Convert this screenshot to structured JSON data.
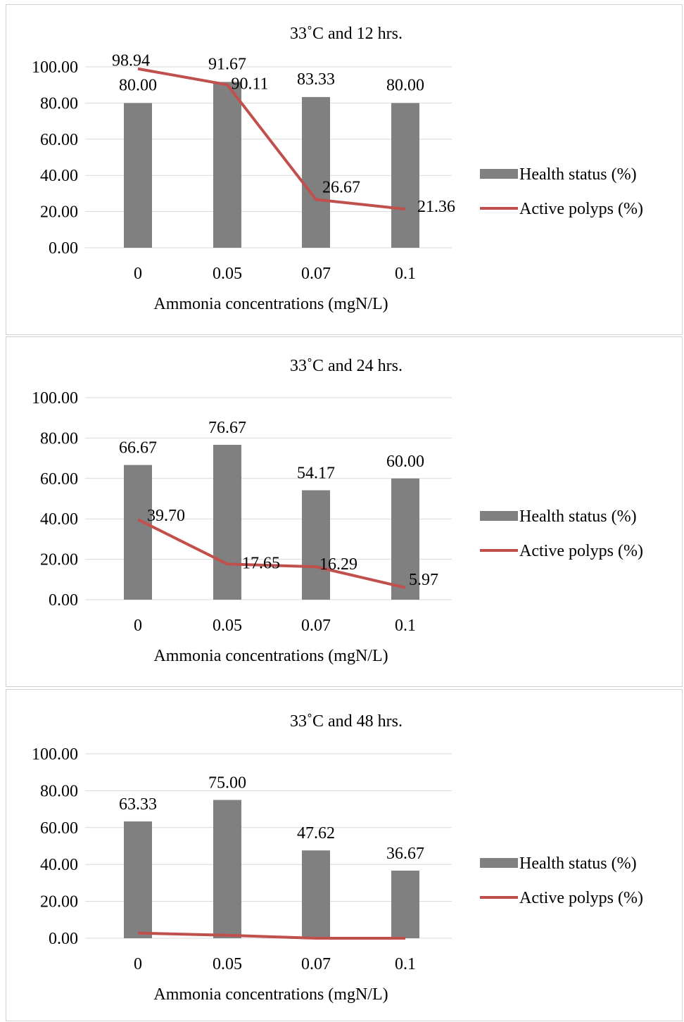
{
  "chart_data": [
    {
      "type": "bar",
      "title": "33˚C and 12 hrs.",
      "xlabel": "Ammonia concentrations (mgN/L)",
      "categories": [
        "0",
        "0.05",
        "0.07",
        "0.1"
      ],
      "ylim": [
        0,
        100
      ],
      "yticks": [
        "0.00",
        "20.00",
        "40.00",
        "60.00",
        "80.00",
        "100.00"
      ],
      "grid": true,
      "legend_position": "right",
      "series": [
        {
          "name": "Health status (%)",
          "kind": "bar",
          "color": "#808080",
          "values": [
            80.0,
            91.67,
            83.33,
            80.0
          ],
          "labels": [
            "80.00",
            "91.67",
            "83.33",
            "80.00"
          ]
        },
        {
          "name": "Active polyps (%)",
          "kind": "line",
          "color": "#c0504d",
          "values": [
            98.94,
            90.11,
            26.67,
            21.36
          ],
          "labels": [
            "98.94",
            "90.11",
            "26.67",
            "21.36"
          ]
        }
      ]
    },
    {
      "type": "bar",
      "title": "33˚C and 24 hrs.",
      "xlabel": "Ammonia concentrations (mgN/L)",
      "categories": [
        "0",
        "0.05",
        "0.07",
        "0.1"
      ],
      "ylim": [
        0,
        100
      ],
      "yticks": [
        "0.00",
        "20.00",
        "40.00",
        "60.00",
        "80.00",
        "100.00"
      ],
      "grid": true,
      "legend_position": "right",
      "series": [
        {
          "name": "Health status (%)",
          "kind": "bar",
          "color": "#808080",
          "values": [
            66.67,
            76.67,
            54.17,
            60.0
          ],
          "labels": [
            "66.67",
            "76.67",
            "54.17",
            "60.00"
          ]
        },
        {
          "name": "Active polyps (%)",
          "kind": "line",
          "color": "#c0504d",
          "values": [
            39.7,
            17.65,
            16.29,
            5.97
          ],
          "labels": [
            "39.70",
            "17.65",
            "16.29",
            "5.97"
          ]
        }
      ]
    },
    {
      "type": "bar",
      "title": "33˚C and 48 hrs.",
      "xlabel": "Ammonia concentrations (mgN/L)",
      "categories": [
        "0",
        "0.05",
        "0.07",
        "0.1"
      ],
      "ylim": [
        0,
        100
      ],
      "yticks": [
        "0.00",
        "20.00",
        "40.00",
        "60.00",
        "80.00",
        "100.00"
      ],
      "grid": true,
      "legend_position": "right",
      "series": [
        {
          "name": "Health status (%)",
          "kind": "bar",
          "color": "#808080",
          "values": [
            63.33,
            75.0,
            47.62,
            36.67
          ],
          "labels": [
            "63.33",
            "75.00",
            "47.62",
            "36.67"
          ]
        },
        {
          "name": "Active polyps (%)",
          "kind": "line",
          "color": "#c0504d",
          "values": [
            2.8,
            1.6,
            0.0,
            0.0
          ],
          "labels": [
            "",
            "",
            "",
            ""
          ]
        }
      ]
    }
  ]
}
